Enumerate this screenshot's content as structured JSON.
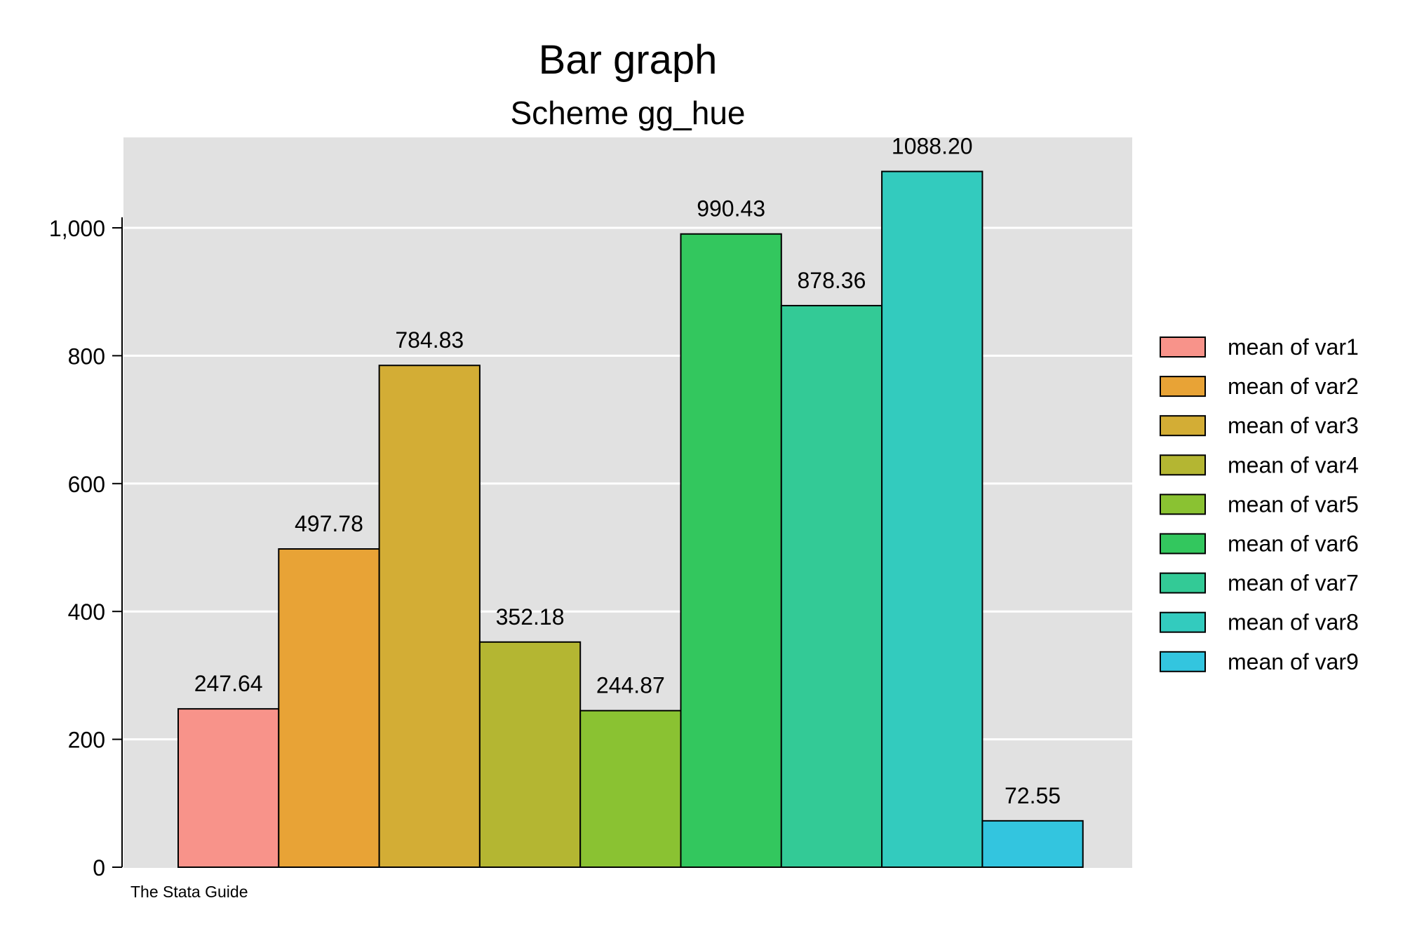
{
  "chart_data": {
    "type": "bar",
    "title": "Bar graph",
    "subtitle": "Scheme gg_hue",
    "note": "The Stata Guide",
    "xlabel": "",
    "ylabel": "",
    "ylim": [
      0,
      1100
    ],
    "yticks": [
      0,
      200,
      400,
      600,
      800,
      1000
    ],
    "ytick_labels": [
      "0",
      "200",
      "400",
      "600",
      "800",
      "1,000"
    ],
    "grid": true,
    "legend_position": "right",
    "series": [
      {
        "name": "mean of var1",
        "value": 247.64,
        "label": "247.64",
        "color": "#F8938A"
      },
      {
        "name": "mean of var2",
        "value": 497.78,
        "label": "497.78",
        "color": "#E8A336"
      },
      {
        "name": "mean of var3",
        "value": 784.83,
        "label": "784.83",
        "color": "#D3AD35"
      },
      {
        "name": "mean of var4",
        "value": 352.18,
        "label": "352.18",
        "color": "#B4B632"
      },
      {
        "name": "mean of var5",
        "value": 244.87,
        "label": "244.87",
        "color": "#8AC232"
      },
      {
        "name": "mean of var6",
        "value": 990.43,
        "label": "990.43",
        "color": "#33C75E"
      },
      {
        "name": "mean of var7",
        "value": 878.36,
        "label": "878.36",
        "color": "#33CA96"
      },
      {
        "name": "mean of var8",
        "value": 1088.2,
        "label": "1088.20",
        "color": "#33CBBE"
      },
      {
        "name": "mean of var9",
        "value": 72.55,
        "label": "72.55",
        "color": "#33C5DF"
      }
    ],
    "colors": {
      "plot_background": "#E1E1E1",
      "gridline": "#FFFFFF",
      "bar_outline": "#000000"
    }
  }
}
